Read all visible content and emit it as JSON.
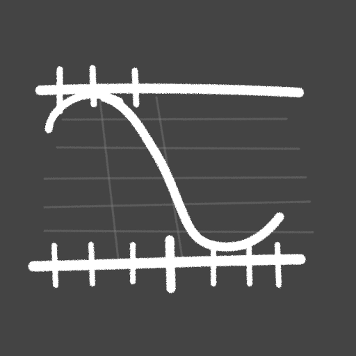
{
  "icon": {
    "name": "chalk-sketched-curve-between-axes-icon",
    "colors": {
      "background": "#444444",
      "chalk": "#FFFFFF",
      "grid": "#8A8A8A"
    }
  }
}
